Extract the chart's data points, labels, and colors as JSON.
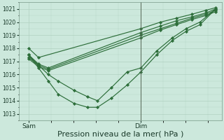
{
  "background_color": "#cce8dc",
  "grid_color": "#aaccbb",
  "line_color": "#2d6e3a",
  "marker_color": "#2d6e3a",
  "xlabel": "Pression niveau de la mer( hPa )",
  "xlabel_fontsize": 8,
  "ylim": [
    1012.5,
    1021.5
  ],
  "yticks": [
    1013,
    1014,
    1015,
    1016,
    1017,
    1018,
    1019,
    1020,
    1021
  ],
  "xtick_labels": [
    "Sam",
    "Dim"
  ],
  "xtick_positions": [
    0.05,
    0.62
  ],
  "series": [
    {
      "x": [
        0.05,
        0.1,
        0.62,
        0.72,
        0.8,
        0.88,
        0.95,
        1.0
      ],
      "y": [
        1018.0,
        1017.3,
        1019.5,
        1020.0,
        1020.3,
        1020.6,
        1020.9,
        1021.1
      ]
    },
    {
      "x": [
        0.05,
        0.1,
        0.15,
        0.62,
        0.72,
        0.8,
        0.88,
        0.95,
        1.0
      ],
      "y": [
        1017.5,
        1016.8,
        1016.5,
        1019.2,
        1019.7,
        1020.1,
        1020.4,
        1020.7,
        1021.0
      ]
    },
    {
      "x": [
        0.05,
        0.1,
        0.15,
        0.62,
        0.72,
        0.8,
        0.88,
        0.95,
        1.0
      ],
      "y": [
        1017.3,
        1016.7,
        1016.4,
        1019.0,
        1019.5,
        1019.9,
        1020.3,
        1020.6,
        1020.9
      ]
    },
    {
      "x": [
        0.05,
        0.1,
        0.15,
        0.62,
        0.72,
        0.8,
        0.88,
        0.95,
        1.0
      ],
      "y": [
        1017.2,
        1016.6,
        1016.3,
        1018.8,
        1019.4,
        1019.8,
        1020.2,
        1020.5,
        1020.8
      ]
    },
    {
      "x": [
        0.05,
        0.1,
        0.15,
        0.2,
        0.28,
        0.35,
        0.4,
        0.47,
        0.55,
        0.62,
        0.7,
        0.78,
        0.85,
        0.92,
        1.0
      ],
      "y": [
        1017.5,
        1016.7,
        1016.0,
        1015.5,
        1014.8,
        1014.3,
        1014.0,
        1015.0,
        1016.2,
        1016.5,
        1017.8,
        1018.8,
        1019.5,
        1020.0,
        1021.0
      ]
    },
    {
      "x": [
        0.05,
        0.1,
        0.15,
        0.2,
        0.28,
        0.35,
        0.4,
        0.47,
        0.55,
        0.62,
        0.7,
        0.78,
        0.85,
        0.92,
        1.0
      ],
      "y": [
        1017.5,
        1016.5,
        1015.5,
        1014.5,
        1013.8,
        1013.5,
        1013.5,
        1014.2,
        1015.2,
        1016.2,
        1017.5,
        1018.6,
        1019.3,
        1019.8,
        1021.0
      ]
    }
  ],
  "vline_x": 0.62,
  "marker": "D",
  "markersize": 2.2,
  "linewidth": 0.85
}
